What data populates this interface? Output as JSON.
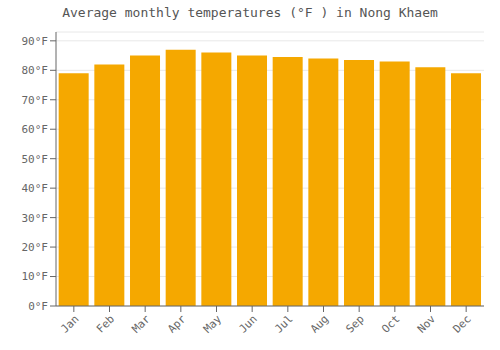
{
  "chart_data": {
    "type": "bar",
    "title": "Average monthly temperatures (°F ) in Nong Khaem",
    "categories": [
      "Jan",
      "Feb",
      "Mar",
      "Apr",
      "May",
      "Jun",
      "Jul",
      "Aug",
      "Sep",
      "Oct",
      "Nov",
      "Dec"
    ],
    "values": [
      79.0,
      82.0,
      85.0,
      87.0,
      86.0,
      85.0,
      84.5,
      84.0,
      83.5,
      83.0,
      81.0,
      79.0
    ],
    "color": "#F5A800",
    "ylim": [
      0,
      93
    ],
    "yticks": [
      {
        "value": 0,
        "label": "0°F"
      },
      {
        "value": 10,
        "label": "10°F"
      },
      {
        "value": 20,
        "label": "20°F"
      },
      {
        "value": 30,
        "label": "30°F"
      },
      {
        "value": 40,
        "label": "40°F"
      },
      {
        "value": 50,
        "label": "50°F"
      },
      {
        "value": 60,
        "label": "60°F"
      },
      {
        "value": 70,
        "label": "70°F"
      },
      {
        "value": 80,
        "label": "80°F"
      },
      {
        "value": 90,
        "label": "90°F"
      }
    ],
    "grid": true
  }
}
